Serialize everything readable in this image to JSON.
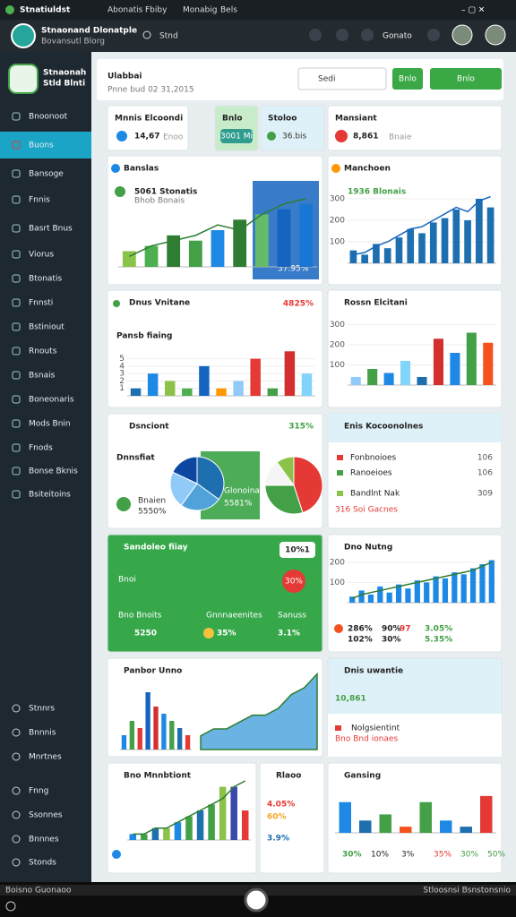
{
  "top_bar": {
    "app": "Stnatiuldst",
    "menu": [
      "Abonatis",
      "Fbiby",
      "Monabig",
      "Bels"
    ]
  },
  "header": {
    "title": "Stnaonand Dlonatple",
    "subtitle": "Bovansutl Blorg",
    "search": "Stnd",
    "user": "Gonato"
  },
  "sidebar": {
    "brand": [
      "Stnaonah",
      "Stld Blnti"
    ],
    "active": 1,
    "items": [
      "Bnoonoot",
      "Buons",
      "Bansoge",
      "Fnnis",
      "Basrt Bnus",
      "Viorus",
      "Btonatis",
      "Fnnsti",
      "Bstiniout",
      "Rnouts",
      "Bsnais",
      "Boneonaris",
      "Mods Bnin",
      "Fnods",
      "Bonse Bknis",
      "Bsiteitoins"
    ],
    "bottom_items": [
      "Stnnrs",
      "Bnnnis",
      "Mnrtnes",
      "Fnng",
      "Ssonnes",
      "Bnnnes",
      "Stonds"
    ]
  },
  "page": {
    "title": "Ulabbai",
    "subtitle": "Pnne bud 02 31,2015",
    "search": "Sedi",
    "buttons": [
      "Bnlo",
      "Bnlo"
    ]
  },
  "cards": [
    {
      "title": "Mnnis Elcoondi",
      "texts": [
        "14,67",
        "Enoo"
      ]
    },
    {
      "title": "Bnlo",
      "texts": [
        "3001 Mi"
      ]
    },
    {
      "title": "Stoloo",
      "texts": [
        "36.bis"
      ]
    },
    {
      "title": "Mansiant",
      "texts": [
        "8,861",
        "Bnaie"
      ]
    },
    {
      "title": "Banslas",
      "texts": [
        "5061 Stonatis",
        "Bhob Bonais",
        "57.95%"
      ],
      "charts": [
        {
          "type": "bar",
          "values": [
            3,
            4,
            6,
            5,
            7,
            9,
            10,
            11,
            12
          ],
          "colors": [
            "#8bc34a",
            "#4caf50",
            "#2e7d32",
            "#43a047",
            "#1e88e5",
            "#2e7d32",
            "#66bb6a",
            "#1565c0",
            "#1976d2"
          ],
          "ylim": [
            0,
            14
          ],
          "line": [
            2,
            4,
            5,
            6,
            8,
            7,
            10,
            12,
            13
          ],
          "line_color": "#2e7d32"
        }
      ]
    },
    {
      "title": "Manchoen",
      "texts": [
        "1936 Blonais"
      ],
      "charts": [
        {
          "type": "bar",
          "values": [
            60,
            40,
            90,
            70,
            120,
            160,
            140,
            190,
            210,
            250,
            200,
            300,
            260
          ],
          "color": "#1e6fb0",
          "ylim": [
            0,
            350
          ],
          "yticks": [
            100,
            200,
            300
          ],
          "line": [
            40,
            50,
            80,
            100,
            130,
            160,
            170,
            200,
            230,
            260,
            240,
            290,
            310
          ],
          "line_color": "#1565c0"
        }
      ]
    },
    {
      "title": "Dnus Vnitane",
      "texts": [
        "4825%",
        "Pansb fiaing"
      ],
      "charts": [
        {
          "type": "bar",
          "values": [
            1,
            3,
            2,
            1,
            4,
            1,
            2,
            5,
            1,
            6,
            3
          ],
          "colors": [
            "#1e6fb0",
            "#1e88e5",
            "#8bc34a",
            "#4caf50",
            "#1565c0",
            "#ff9800",
            "#90caf9",
            "#e53935",
            "#43a047",
            "#d32f2f",
            "#81d4fa"
          ],
          "ylim": [
            0,
            7
          ],
          "yticks": [
            1,
            2,
            3,
            4,
            5
          ]
        }
      ]
    },
    {
      "title": "Rossn Elcitani",
      "charts": [
        {
          "type": "bar",
          "values": [
            40,
            80,
            60,
            120,
            40,
            230,
            160,
            260,
            210
          ],
          "colors": [
            "#90caf9",
            "#43a047",
            "#1e88e5",
            "#81d4fa",
            "#1e6fb0",
            "#d32f2f",
            "#1e88e5",
            "#43a047",
            "#f4511e"
          ],
          "ylim": [
            0,
            320
          ],
          "yticks": [
            100,
            200,
            300
          ]
        }
      ]
    },
    {
      "title": "Dsnciont",
      "texts": [
        "315%",
        "Dnnsfiat",
        "Bnaien",
        "5550%",
        "Glonoinatss",
        "5581%"
      ],
      "charts": [
        {
          "type": "pie",
          "values": [
            35,
            25,
            22,
            18
          ],
          "colors": [
            "#1e6fb0",
            "#4fa3d8",
            "#90caf9",
            "#0d47a1"
          ]
        },
        {
          "type": "pie",
          "values": [
            45,
            30,
            15,
            10
          ],
          "colors": [
            "#e53935",
            "#43a047",
            "#f5f5f5",
            "#8bc34a"
          ]
        }
      ]
    },
    {
      "title": "Enis Kocoonolnes",
      "texts": [
        "Fonbnoioes",
        "106",
        "Ranoeioes",
        "106",
        "Bandlnt Nak",
        "309",
        "316 Soi Gacnes"
      ]
    },
    {
      "title": "Sandoleo fiiay",
      "texts": [
        "10%1",
        "Bnoi",
        "30%",
        "Bno Bnoits",
        "Gnnnaeenites",
        "Sanuss",
        "5250",
        "35%",
        "3.1%"
      ]
    },
    {
      "title": "Dno Nutng",
      "texts": [
        "286%",
        "90%",
        "97",
        "3.05%",
        "102%",
        "30%",
        "5.35%"
      ],
      "charts": [
        {
          "type": "bar",
          "values": [
            30,
            60,
            40,
            80,
            50,
            90,
            70,
            110,
            100,
            130,
            120,
            150,
            140,
            170,
            190,
            210
          ],
          "color": "#1e88e5",
          "ylim": [
            0,
            230
          ],
          "yticks": [
            100,
            200
          ],
          "line": [
            20,
            40,
            50,
            60,
            70,
            80,
            90,
            100,
            110,
            120,
            130,
            140,
            150,
            160,
            180,
            200
          ],
          "line_color": "#2e7d32"
        }
      ]
    },
    {
      "title": "Panbor Unno",
      "charts": [
        {
          "type": "bar",
          "values": [
            2,
            4,
            3,
            8,
            6,
            5,
            4,
            3,
            2
          ],
          "colors": [
            "#1e88e5",
            "#43a047",
            "#e53935",
            "#1565c0",
            "#d32f2f",
            "#1e88e5",
            "#43a047",
            "#1e6fb0",
            "#e53935"
          ],
          "ylim": [
            0,
            9
          ]
        },
        {
          "type": "area",
          "values": [
            2,
            3,
            3,
            4,
            5,
            5,
            6,
            8,
            9,
            11
          ],
          "color": "#3a9ad9",
          "ylim": [
            0,
            12
          ]
        }
      ]
    },
    {
      "title": "Dnis uwantie",
      "texts": [
        "10,861",
        "Nolgsientint",
        "Bno Bnd ionaes"
      ]
    },
    {
      "title": "Bno Mnnbtiont",
      "charts": [
        {
          "type": "bar",
          "values": [
            1,
            1,
            2,
            2,
            3,
            4,
            5,
            6,
            9,
            9,
            5
          ],
          "colors": [
            "#1e88e5",
            "#43a047",
            "#1e6fb0",
            "#8bc34a",
            "#1e88e5",
            "#43a047",
            "#1e6fb0",
            "#43a047",
            "#8bc34a",
            "#3949ab",
            "#e53935"
          ],
          "ylim": [
            0,
            10
          ],
          "line": [
            1,
            1,
            2,
            2,
            3,
            4,
            5,
            6,
            7,
            9,
            10
          ],
          "line_color": "#2e7d32"
        }
      ]
    },
    {
      "title": "Rlaoo",
      "texts": [
        "4.05%",
        "60%",
        "3.9%"
      ]
    },
    {
      "title": "Gansing",
      "texts": [
        "30%",
        "10%",
        "3%",
        "35%",
        "30%",
        "50%"
      ],
      "charts": [
        {
          "type": "bar",
          "values": [
            5,
            2,
            3,
            1,
            5,
            2,
            1,
            6
          ],
          "colors": [
            "#1e88e5",
            "#1e6fb0",
            "#43a047",
            "#f4511e",
            "#43a047",
            "#1e88e5",
            "#1e6fb0",
            "#e53935"
          ],
          "ylim": [
            0,
            7
          ]
        }
      ]
    }
  ],
  "taskbar": {
    "left": "Boisno Guonaoo",
    "right": "Stloosnsi Bsnstonsnio"
  }
}
